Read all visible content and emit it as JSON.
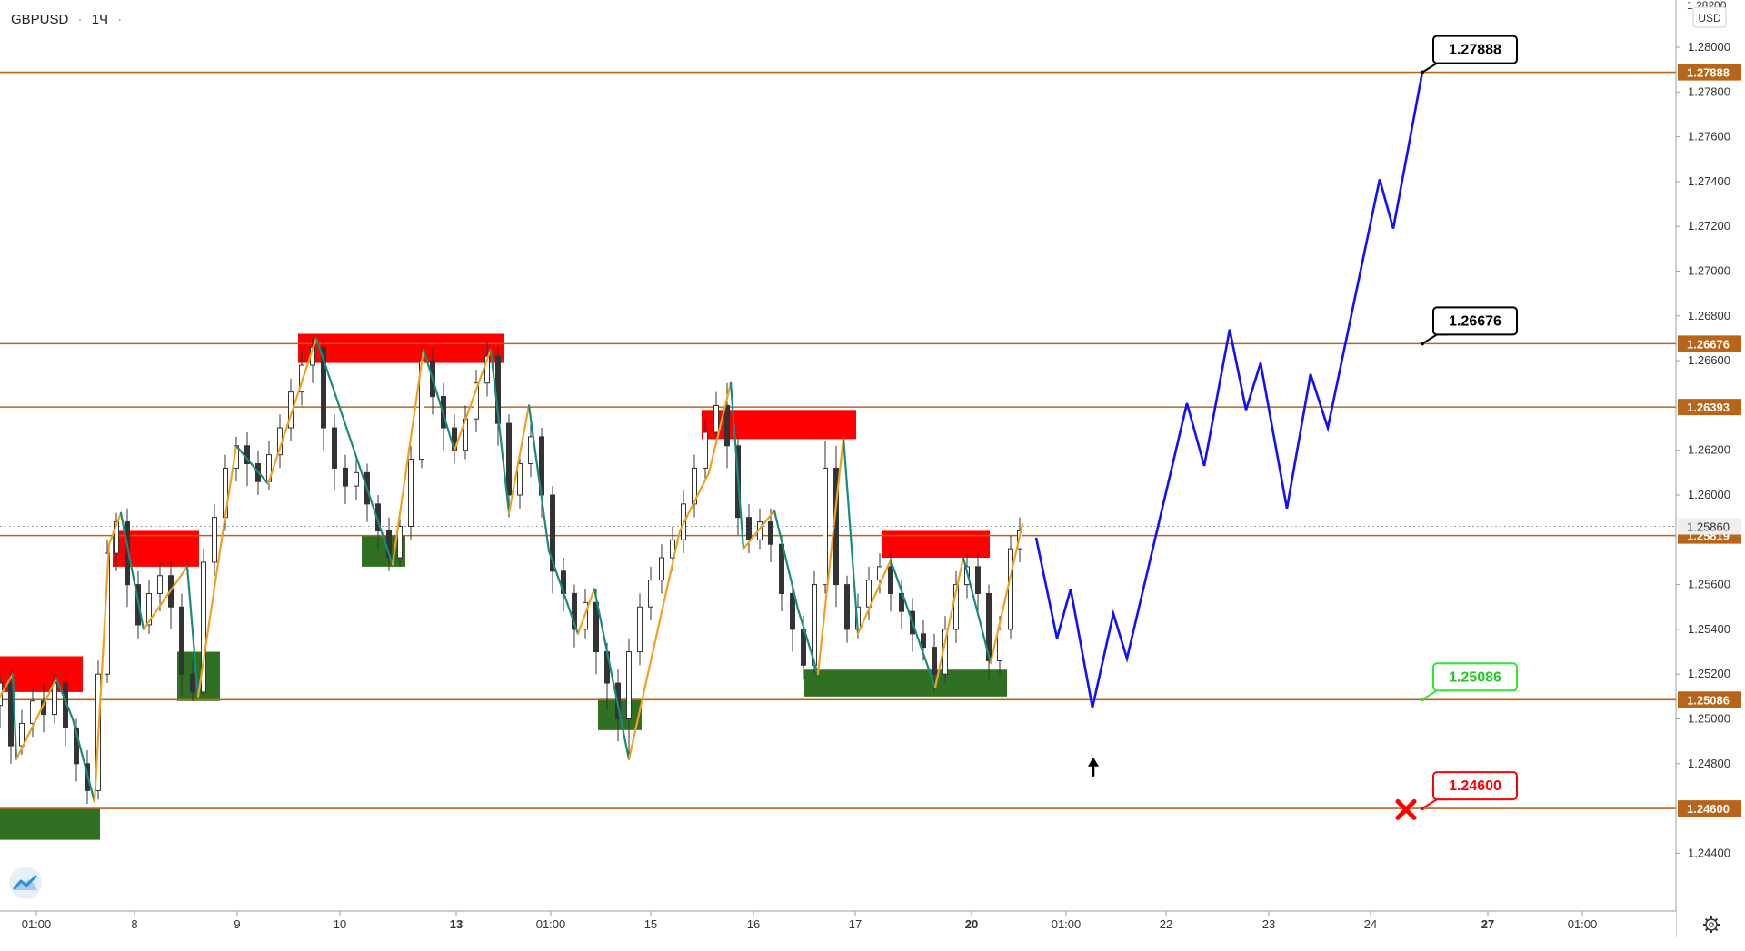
{
  "header": {
    "symbol": "GBPUSD",
    "separator": "·",
    "timeframe": "1Ч",
    "dot": "·"
  },
  "price_axis": {
    "currency_button": "USD",
    "top_partial": "1.28200"
  },
  "colors": {
    "level_line": "#b8651a",
    "level_tag_bg": "#b8651a",
    "supply_zone": "#ff0000",
    "demand_zone": "#2f7023",
    "zigzag_up": "#f0a020",
    "zigzag_down": "#1a8a7a",
    "forecast": "#1010ff",
    "candle": "#333333",
    "target_label_border": "#000000",
    "entry_label_border": "#2ee82e",
    "stop_label_border": "#ff0000",
    "axis_text": "#333333"
  },
  "chart_data": {
    "type": "candlestick",
    "symbol": "GBPUSD",
    "interval": "1H",
    "ylim": [
      1.2432,
      1.2822
    ],
    "y_ticks": [
      "1.28000",
      "1.27800",
      "1.27600",
      "1.27400",
      "1.27200",
      "1.27000",
      "1.26800",
      "1.26600",
      "1.26200",
      "1.26000",
      "1.25600",
      "1.25400",
      "1.25200",
      "1.25000",
      "1.24800",
      "1.24400"
    ],
    "x_ticks": [
      "01:00",
      "8",
      "9",
      "10",
      "13",
      "01:00",
      "15",
      "16",
      "17",
      "20",
      "01:00",
      "22",
      "23",
      "24",
      "27",
      "01:00"
    ],
    "horizontal_levels": [
      {
        "price": 1.27888,
        "label": "1.27888"
      },
      {
        "price": 1.26676,
        "label": "1.26676"
      },
      {
        "price": 1.26393,
        "label": "1.26393"
      },
      {
        "price": 1.25819,
        "label": "1.25819"
      },
      {
        "price": 1.25086,
        "label": "1.25086"
      },
      {
        "price": 1.246,
        "label": "1.24600"
      }
    ],
    "current_price": {
      "price": 1.2586,
      "label": "1.25860"
    },
    "supply_zones": [
      {
        "t0": 0,
        "t1": 91,
        "p_top": 1.2528,
        "p_bot": 1.2512
      },
      {
        "t0": 124,
        "t1": 219,
        "p_top": 1.2584,
        "p_bot": 1.2568
      },
      {
        "t0": 328,
        "t1": 554,
        "p_top": 1.2672,
        "p_bot": 1.2659
      },
      {
        "t0": 772,
        "t1": 942,
        "p_top": 1.2638,
        "p_bot": 1.2625
      },
      {
        "t0": 970,
        "t1": 1089,
        "p_top": 1.2584,
        "p_bot": 1.2572
      }
    ],
    "demand_zones": [
      {
        "t0": 0,
        "t1": 110,
        "p_top": 1.246,
        "p_bot": 1.2446
      },
      {
        "t0": 195,
        "t1": 242,
        "p_top": 1.253,
        "p_bot": 1.2508
      },
      {
        "t0": 398,
        "t1": 446,
        "p_top": 1.2582,
        "p_bot": 1.2568
      },
      {
        "t0": 658,
        "t1": 706,
        "p_top": 1.2509,
        "p_bot": 1.2495
      },
      {
        "t0": 885,
        "t1": 1108,
        "p_top": 1.2522,
        "p_bot": 1.251
      }
    ],
    "zigzag": [
      [
        0,
        1.251
      ],
      [
        14,
        1.252
      ],
      [
        18,
        1.2482
      ],
      [
        62,
        1.2518
      ],
      [
        80,
        1.25
      ],
      [
        104,
        1.2463
      ],
      [
        120,
        1.2578
      ],
      [
        133,
        1.2592
      ],
      [
        158,
        1.254
      ],
      [
        206,
        1.2568
      ],
      [
        218,
        1.251
      ],
      [
        245,
        1.2583
      ],
      [
        260,
        1.2622
      ],
      [
        295,
        1.2605
      ],
      [
        348,
        1.267
      ],
      [
        432,
        1.2569
      ],
      [
        466,
        1.2665
      ],
      [
        500,
        1.262
      ],
      [
        540,
        1.2665
      ],
      [
        560,
        1.2592
      ],
      [
        582,
        1.264
      ],
      [
        604,
        1.2575
      ],
      [
        636,
        1.2538
      ],
      [
        654,
        1.2558
      ],
      [
        692,
        1.2482
      ],
      [
        748,
        1.2584
      ],
      [
        780,
        1.261
      ],
      [
        804,
        1.265
      ],
      [
        818,
        1.2576
      ],
      [
        852,
        1.2593
      ],
      [
        878,
        1.2549
      ],
      [
        900,
        1.252
      ],
      [
        928,
        1.2626
      ],
      [
        944,
        1.2538
      ],
      [
        980,
        1.2571
      ],
      [
        1029,
        1.2514
      ],
      [
        1060,
        1.2572
      ],
      [
        1090,
        1.2525
      ],
      [
        1125,
        1.2587
      ]
    ],
    "candles": [
      [
        0,
        1.2506,
        1.2516,
        1.2496,
        1.252
      ],
      [
        12,
        1.2516,
        1.2488,
        1.248,
        1.2522
      ],
      [
        24,
        1.2488,
        1.2498,
        1.2484,
        1.2504
      ],
      [
        36,
        1.2498,
        1.2508,
        1.2492,
        1.2514
      ],
      [
        48,
        1.2508,
        1.2502,
        1.2494,
        1.2516
      ],
      [
        60,
        1.2502,
        1.2516,
        1.2498,
        1.252
      ],
      [
        72,
        1.2516,
        1.2496,
        1.2488,
        1.252
      ],
      [
        84,
        1.2496,
        1.248,
        1.2472,
        1.25
      ],
      [
        96,
        1.248,
        1.2468,
        1.2462,
        1.2486
      ],
      [
        108,
        1.2468,
        1.252,
        1.2464,
        1.2526
      ],
      [
        118,
        1.252,
        1.2574,
        1.2516,
        1.258
      ],
      [
        128,
        1.2574,
        1.2588,
        1.2566,
        1.2592
      ],
      [
        140,
        1.2588,
        1.256,
        1.255,
        1.2594
      ],
      [
        152,
        1.256,
        1.2542,
        1.2536,
        1.2566
      ],
      [
        164,
        1.2542,
        1.2556,
        1.2538,
        1.2562
      ],
      [
        176,
        1.2556,
        1.2564,
        1.2548,
        1.257
      ],
      [
        188,
        1.2564,
        1.255,
        1.254,
        1.257
      ],
      [
        200,
        1.255,
        1.252,
        1.251,
        1.2556
      ],
      [
        212,
        1.252,
        1.2512,
        1.2508,
        1.2526
      ],
      [
        224,
        1.2512,
        1.257,
        1.251,
        1.2576
      ],
      [
        236,
        1.257,
        1.259,
        1.2564,
        1.2596
      ],
      [
        248,
        1.259,
        1.2612,
        1.2584,
        1.2618
      ],
      [
        260,
        1.2612,
        1.2622,
        1.2606,
        1.2626
      ],
      [
        272,
        1.2622,
        1.2614,
        1.2604,
        1.2628
      ],
      [
        284,
        1.2614,
        1.2606,
        1.26,
        1.262
      ],
      [
        296,
        1.2606,
        1.2618,
        1.2602,
        1.2624
      ],
      [
        308,
        1.2618,
        1.263,
        1.2612,
        1.2636
      ],
      [
        320,
        1.263,
        1.2646,
        1.2624,
        1.2652
      ],
      [
        332,
        1.2646,
        1.2658,
        1.264,
        1.2664
      ],
      [
        344,
        1.2658,
        1.2666,
        1.265,
        1.267
      ],
      [
        356,
        1.2666,
        1.263,
        1.262,
        1.267
      ],
      [
        368,
        1.263,
        1.2612,
        1.2602,
        1.2636
      ],
      [
        380,
        1.2612,
        1.2604,
        1.2596,
        1.2618
      ],
      [
        392,
        1.2604,
        1.261,
        1.2598,
        1.2616
      ],
      [
        404,
        1.261,
        1.2596,
        1.2588,
        1.2614
      ],
      [
        416,
        1.2596,
        1.2584,
        1.2576,
        1.26
      ],
      [
        428,
        1.2584,
        1.2572,
        1.2566,
        1.259
      ],
      [
        440,
        1.2572,
        1.2586,
        1.2568,
        1.2592
      ],
      [
        452,
        1.2586,
        1.2616,
        1.258,
        1.2622
      ],
      [
        464,
        1.2616,
        1.266,
        1.2612,
        1.2666
      ],
      [
        476,
        1.266,
        1.2644,
        1.2636,
        1.2666
      ],
      [
        488,
        1.2644,
        1.263,
        1.262,
        1.265
      ],
      [
        500,
        1.263,
        1.262,
        1.2614,
        1.2636
      ],
      [
        512,
        1.262,
        1.2634,
        1.2616,
        1.264
      ],
      [
        524,
        1.2634,
        1.265,
        1.2628,
        1.2656
      ],
      [
        536,
        1.265,
        1.2662,
        1.2644,
        1.2668
      ],
      [
        548,
        1.2662,
        1.2632,
        1.2622,
        1.2666
      ],
      [
        560,
        1.2632,
        1.26,
        1.259,
        1.2636
      ],
      [
        572,
        1.26,
        1.2614,
        1.2594,
        1.262
      ],
      [
        584,
        1.2614,
        1.2626,
        1.2608,
        1.2634
      ],
      [
        596,
        1.2626,
        1.26,
        1.259,
        1.263
      ],
      [
        608,
        1.26,
        1.2566,
        1.2556,
        1.2604
      ],
      [
        620,
        1.2566,
        1.2556,
        1.2548,
        1.2572
      ],
      [
        632,
        1.2556,
        1.254,
        1.2532,
        1.256
      ],
      [
        644,
        1.254,
        1.2552,
        1.2536,
        1.2558
      ],
      [
        656,
        1.2552,
        1.253,
        1.252,
        1.2558
      ],
      [
        668,
        1.253,
        1.2516,
        1.2504,
        1.2534
      ],
      [
        680,
        1.2516,
        1.25,
        1.249,
        1.2522
      ],
      [
        692,
        1.25,
        1.253,
        1.2484,
        1.2536
      ],
      [
        704,
        1.253,
        1.255,
        1.2524,
        1.2556
      ],
      [
        716,
        1.255,
        1.2562,
        1.2544,
        1.2568
      ],
      [
        728,
        1.2562,
        1.2572,
        1.2556,
        1.2578
      ],
      [
        740,
        1.2572,
        1.258,
        1.2566,
        1.2586
      ],
      [
        752,
        1.258,
        1.2596,
        1.2574,
        1.2602
      ],
      [
        764,
        1.2596,
        1.2612,
        1.259,
        1.2618
      ],
      [
        776,
        1.2612,
        1.2628,
        1.2606,
        1.2634
      ],
      [
        788,
        1.2628,
        1.264,
        1.2622,
        1.2646
      ],
      [
        800,
        1.264,
        1.2622,
        1.2612,
        1.265
      ],
      [
        812,
        1.2622,
        1.259,
        1.2582,
        1.2626
      ],
      [
        824,
        1.259,
        1.258,
        1.2574,
        1.2596
      ],
      [
        836,
        1.258,
        1.2588,
        1.2576,
        1.2594
      ],
      [
        848,
        1.2588,
        1.2578,
        1.257,
        1.2594
      ],
      [
        860,
        1.2578,
        1.2556,
        1.2548,
        1.2582
      ],
      [
        872,
        1.2556,
        1.254,
        1.253,
        1.256
      ],
      [
        884,
        1.254,
        1.2524,
        1.2518,
        1.2546
      ],
      [
        896,
        1.2524,
        1.256,
        1.252,
        1.2566
      ],
      [
        908,
        1.256,
        1.2612,
        1.2556,
        1.2624
      ],
      [
        920,
        1.2612,
        1.256,
        1.255,
        1.2622
      ],
      [
        932,
        1.256,
        1.254,
        1.2534,
        1.2564
      ],
      [
        944,
        1.254,
        1.255,
        1.2536,
        1.2556
      ],
      [
        956,
        1.255,
        1.2562,
        1.2544,
        1.2568
      ],
      [
        968,
        1.2562,
        1.2568,
        1.2556,
        1.2574
      ],
      [
        980,
        1.2568,
        1.2556,
        1.2548,
        1.2574
      ],
      [
        992,
        1.2556,
        1.2548,
        1.254,
        1.2562
      ],
      [
        1004,
        1.2548,
        1.2538,
        1.253,
        1.2554
      ],
      [
        1016,
        1.2538,
        1.2532,
        1.2526,
        1.2544
      ],
      [
        1028,
        1.2532,
        1.252,
        1.2512,
        1.2538
      ],
      [
        1040,
        1.252,
        1.254,
        1.2516,
        1.2546
      ],
      [
        1052,
        1.254,
        1.256,
        1.2534,
        1.2566
      ],
      [
        1064,
        1.256,
        1.2568,
        1.2554,
        1.2574
      ],
      [
        1076,
        1.2568,
        1.2556,
        1.2548,
        1.2574
      ],
      [
        1088,
        1.2556,
        1.2526,
        1.2518,
        1.256
      ],
      [
        1100,
        1.2526,
        1.254,
        1.252,
        1.2546
      ],
      [
        1112,
        1.254,
        1.2576,
        1.2536,
        1.2582
      ],
      [
        1122,
        1.2576,
        1.2584,
        1.257,
        1.259
      ]
    ],
    "forecast_path": [
      [
        1140,
        1.2581
      ],
      [
        1163,
        1.2536
      ],
      [
        1178,
        1.2558
      ],
      [
        1202,
        1.2505
      ],
      [
        1225,
        1.2547
      ],
      [
        1240,
        1.2527
      ],
      [
        1306,
        1.2641
      ],
      [
        1325,
        1.2613
      ],
      [
        1353,
        1.2674
      ],
      [
        1371,
        1.2638
      ],
      [
        1387,
        1.2659
      ],
      [
        1416,
        1.2594
      ],
      [
        1442,
        1.2654
      ],
      [
        1461,
        1.263
      ],
      [
        1518,
        1.2741
      ],
      [
        1533,
        1.2719
      ],
      [
        1565,
        1.2789
      ]
    ],
    "callouts": [
      {
        "key": "target_2",
        "label": "1.27888",
        "price": 1.27888,
        "t": 1565,
        "style": "target"
      },
      {
        "key": "target_1",
        "label": "1.26676",
        "price": 1.26676,
        "t": 1565,
        "style": "target"
      },
      {
        "key": "entry",
        "label": "1.25086",
        "price": 1.25086,
        "t": 1565,
        "style": "entry"
      },
      {
        "key": "stop",
        "label": "1.24600",
        "price": 1.246,
        "t": 1565,
        "style": "stop"
      }
    ],
    "markers": [
      {
        "type": "up-arrow",
        "t": 1203,
        "price": 1.248
      },
      {
        "type": "stop-cross",
        "t": 1547,
        "price": 1.24595
      }
    ]
  }
}
